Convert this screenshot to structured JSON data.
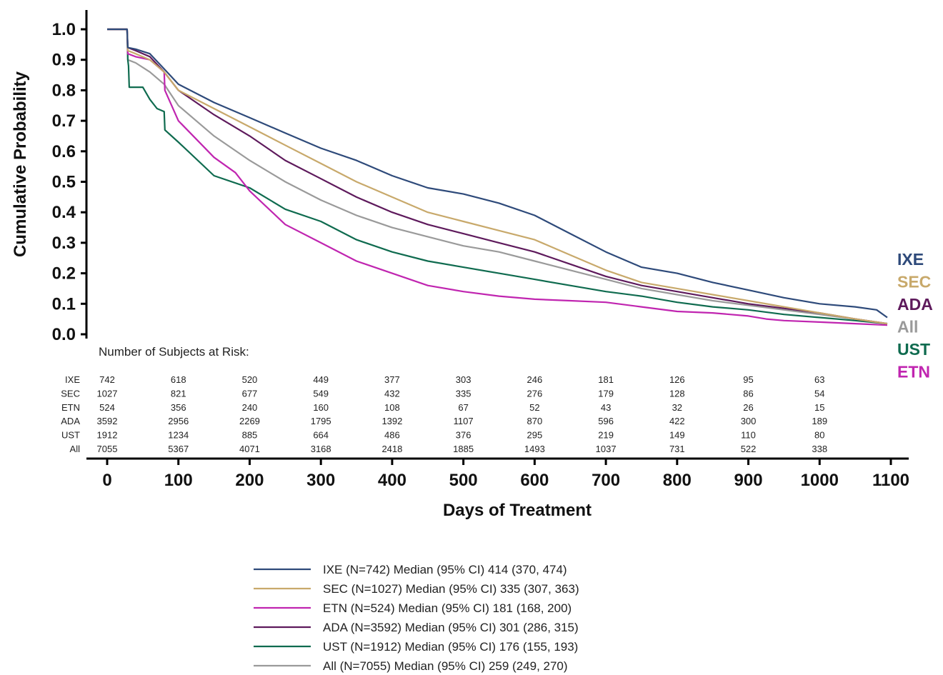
{
  "chart_data": {
    "type": "line",
    "xlabel": "Days of Treatment",
    "ylabel": "Cumulative Probability",
    "xlim": [
      0,
      1100
    ],
    "ylim": [
      0,
      1.0
    ],
    "x_ticks": [
      "0",
      "100",
      "200",
      "300",
      "400",
      "500",
      "600",
      "700",
      "800",
      "900",
      "1000",
      "1100"
    ],
    "y_ticks": [
      "0.0",
      "0.1",
      "0.2",
      "0.3",
      "0.4",
      "0.5",
      "0.6",
      "0.7",
      "0.8",
      "0.9",
      "1.0"
    ],
    "grid": false,
    "series": [
      {
        "name": "IXE",
        "color": "#2e4a7a",
        "legend": "IXE  (N=742) Median (95% CI) 414 (370, 474)",
        "x": [
          0,
          28,
          29,
          40,
          60,
          80,
          100,
          150,
          200,
          250,
          300,
          350,
          400,
          450,
          500,
          550,
          600,
          650,
          700,
          750,
          800,
          850,
          900,
          950,
          1000,
          1050,
          1080,
          1095
        ],
        "y": [
          1.0,
          1.0,
          0.94,
          0.935,
          0.92,
          0.87,
          0.82,
          0.76,
          0.71,
          0.66,
          0.61,
          0.57,
          0.52,
          0.48,
          0.46,
          0.43,
          0.39,
          0.33,
          0.27,
          0.22,
          0.2,
          0.17,
          0.145,
          0.12,
          0.1,
          0.09,
          0.08,
          0.055
        ]
      },
      {
        "name": "SEC",
        "color": "#c8a96b",
        "legend": "SEC (N=1027) Median (95% CI) 335 (307, 363)",
        "x": [
          0,
          28,
          29,
          40,
          60,
          80,
          100,
          150,
          200,
          250,
          300,
          350,
          400,
          450,
          500,
          550,
          600,
          650,
          700,
          750,
          800,
          850,
          900,
          950,
          1000,
          1050,
          1095
        ],
        "y": [
          1.0,
          1.0,
          0.93,
          0.92,
          0.9,
          0.86,
          0.8,
          0.74,
          0.68,
          0.62,
          0.56,
          0.5,
          0.45,
          0.4,
          0.37,
          0.34,
          0.31,
          0.26,
          0.21,
          0.17,
          0.15,
          0.13,
          0.11,
          0.09,
          0.07,
          0.05,
          0.035
        ]
      },
      {
        "name": "ETN",
        "color": "#c025b0",
        "legend": "ETN (N=524) Median (95% CI) 181 (168, 200)",
        "x": [
          0,
          28,
          29,
          40,
          60,
          80,
          81,
          100,
          150,
          180,
          200,
          250,
          300,
          350,
          400,
          450,
          500,
          550,
          600,
          650,
          700,
          750,
          800,
          850,
          900,
          925,
          950,
          1000,
          1050,
          1095
        ],
        "y": [
          1.0,
          1.0,
          0.92,
          0.91,
          0.9,
          0.86,
          0.8,
          0.7,
          0.58,
          0.53,
          0.47,
          0.36,
          0.3,
          0.24,
          0.2,
          0.16,
          0.14,
          0.125,
          0.115,
          0.11,
          0.105,
          0.09,
          0.075,
          0.07,
          0.06,
          0.05,
          0.045,
          0.04,
          0.035,
          0.03
        ]
      },
      {
        "name": "ADA",
        "color": "#5e1a5c",
        "legend": "ADA (N=3592) Median (95% CI) 301 (286, 315)",
        "x": [
          0,
          28,
          29,
          40,
          60,
          80,
          100,
          150,
          200,
          250,
          300,
          350,
          400,
          450,
          500,
          550,
          600,
          650,
          700,
          750,
          800,
          850,
          900,
          950,
          1000,
          1050,
          1095
        ],
        "y": [
          1.0,
          1.0,
          0.94,
          0.93,
          0.91,
          0.86,
          0.8,
          0.72,
          0.65,
          0.57,
          0.51,
          0.45,
          0.4,
          0.36,
          0.33,
          0.3,
          0.27,
          0.23,
          0.19,
          0.16,
          0.14,
          0.12,
          0.1,
          0.085,
          0.07,
          0.05,
          0.035
        ]
      },
      {
        "name": "UST",
        "color": "#0f6b4f",
        "legend": "UST (N=1912) Median (95% CI) 176 (155, 193)",
        "x": [
          0,
          28,
          29,
          30,
          31,
          50,
          60,
          70,
          80,
          81,
          100,
          150,
          200,
          250,
          300,
          350,
          400,
          450,
          500,
          550,
          600,
          650,
          700,
          750,
          800,
          850,
          900,
          950,
          1000,
          1050,
          1095
        ],
        "y": [
          1.0,
          1.0,
          0.9,
          0.88,
          0.81,
          0.81,
          0.77,
          0.74,
          0.73,
          0.67,
          0.63,
          0.52,
          0.48,
          0.41,
          0.37,
          0.31,
          0.27,
          0.24,
          0.22,
          0.2,
          0.18,
          0.16,
          0.14,
          0.125,
          0.105,
          0.09,
          0.08,
          0.065,
          0.055,
          0.045,
          0.035
        ]
      },
      {
        "name": "All",
        "color": "#9a9a9a",
        "legend": "All (N=7055) Median (95% CI) 259 (249, 270)",
        "x": [
          0,
          28,
          29,
          40,
          60,
          80,
          100,
          150,
          200,
          250,
          300,
          350,
          400,
          450,
          500,
          550,
          600,
          650,
          700,
          750,
          800,
          850,
          900,
          950,
          1000,
          1050,
          1095
        ],
        "y": [
          1.0,
          1.0,
          0.9,
          0.89,
          0.86,
          0.82,
          0.75,
          0.65,
          0.57,
          0.5,
          0.44,
          0.39,
          0.35,
          0.32,
          0.29,
          0.27,
          0.24,
          0.21,
          0.18,
          0.15,
          0.13,
          0.11,
          0.095,
          0.08,
          0.065,
          0.05,
          0.035
        ]
      }
    ],
    "risk_table": {
      "title": "Number of Subjects at Risk:",
      "x": [
        0,
        100,
        200,
        300,
        400,
        500,
        600,
        700,
        800,
        900,
        1000
      ],
      "rows": [
        {
          "label": "IXE",
          "values": [
            "742",
            "618",
            "520",
            "449",
            "377",
            "303",
            "246",
            "181",
            "126",
            "95",
            "63"
          ]
        },
        {
          "label": "SEC",
          "values": [
            "1027",
            "821",
            "677",
            "549",
            "432",
            "335",
            "276",
            "179",
            "128",
            "86",
            "54"
          ]
        },
        {
          "label": "ETN",
          "values": [
            "524",
            "356",
            "240",
            "160",
            "108",
            "67",
            "52",
            "43",
            "32",
            "26",
            "15"
          ]
        },
        {
          "label": "ADA",
          "values": [
            "3592",
            "2956",
            "2269",
            "1795",
            "1392",
            "1107",
            "870",
            "596",
            "422",
            "300",
            "189"
          ]
        },
        {
          "label": "UST",
          "values": [
            "1912",
            "1234",
            "885",
            "664",
            "486",
            "376",
            "295",
            "219",
            "149",
            "110",
            "80"
          ]
        },
        {
          "label": "All",
          "values": [
            "7055",
            "5367",
            "4071",
            "3168",
            "2418",
            "1885",
            "1493",
            "1037",
            "731",
            "522",
            "338"
          ]
        }
      ]
    },
    "end_labels": [
      {
        "text": "IXE",
        "color": "#2e4a7a"
      },
      {
        "text": "SEC",
        "color": "#c8a96b"
      },
      {
        "text": "ADA",
        "color": "#5e1a5c"
      },
      {
        "text": "All",
        "color": "#9a9a9a"
      },
      {
        "text": "UST",
        "color": "#0f6b4f"
      },
      {
        "text": "ETN",
        "color": "#c025b0"
      }
    ]
  }
}
